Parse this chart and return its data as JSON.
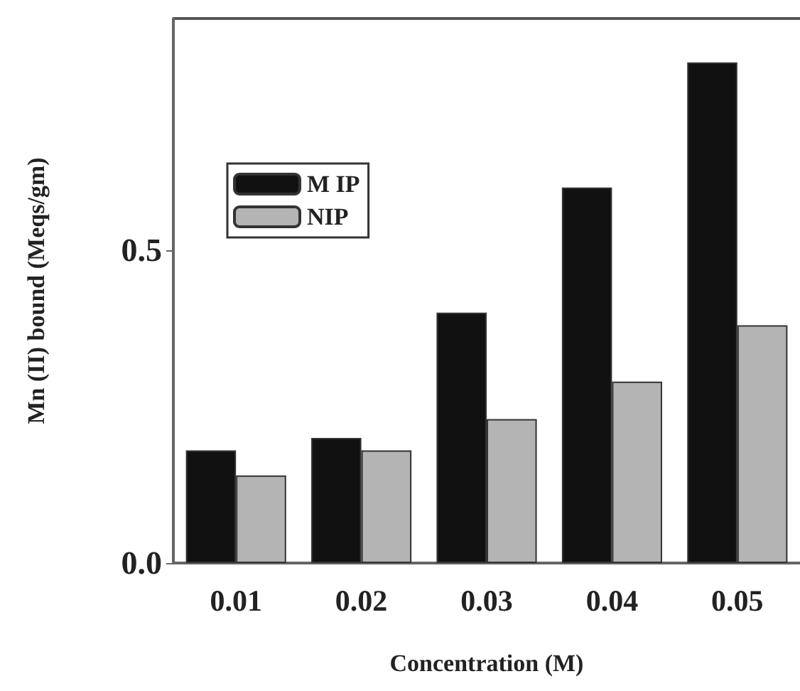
{
  "chart_data": {
    "type": "bar",
    "xlabel": "Concentration (M)",
    "ylabel": "Mn (II) bound (Meqs/gm)",
    "categories": [
      "0.01",
      "0.02",
      "0.03",
      "0.04",
      "0.05"
    ],
    "series": [
      {
        "name": "M IP",
        "color": "#111111",
        "values": [
          0.18,
          0.2,
          0.4,
          0.6,
          0.8
        ]
      },
      {
        "name": "NIP",
        "color": "#b4b4b4",
        "values": [
          0.14,
          0.18,
          0.23,
          0.29,
          0.38
        ]
      }
    ],
    "ylim": [
      0,
      0.87
    ],
    "yticks": [
      {
        "value": 0,
        "label": "0.0"
      },
      {
        "value": 0.5,
        "label": "0.5"
      }
    ],
    "legend": "top left",
    "grid": false
  }
}
